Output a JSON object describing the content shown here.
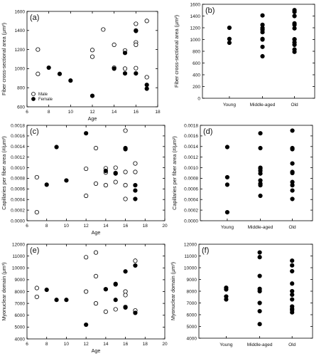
{
  "chart_data": [
    {
      "panel": "(a)",
      "type": "scatter",
      "xlabel": "Age",
      "ylabel": "Fiber cross-sectional area (μm²)",
      "xlim": [
        6,
        18
      ],
      "xticks": [
        6,
        8,
        10,
        12,
        14,
        16,
        18
      ],
      "ylim": [
        600,
        1600
      ],
      "yticks": [
        600,
        800,
        1000,
        1200,
        1400,
        1600
      ],
      "legend": {
        "placement": "bottom-left",
        "entries": [
          "Male",
          "Female"
        ]
      },
      "series": [
        {
          "name": "Male",
          "marker": "open",
          "points": [
            [
              7,
              1200
            ],
            [
              7,
              945
            ],
            [
              12,
              1195
            ],
            [
              12,
              1125
            ],
            [
              13,
              1410
            ],
            [
              14,
              1250
            ],
            [
              14,
              1010
            ],
            [
              15,
              1000
            ],
            [
              15,
              1190
            ],
            [
              16,
              1470
            ],
            [
              16,
              1400
            ],
            [
              16,
              1275
            ],
            [
              16,
              1250
            ],
            [
              16,
              1005
            ],
            [
              17,
              1500
            ],
            [
              17,
              910
            ]
          ]
        },
        {
          "name": "Female",
          "marker": "filled",
          "points": [
            [
              8,
              1010
            ],
            [
              9,
              945
            ],
            [
              10,
              875
            ],
            [
              12,
              715
            ],
            [
              14,
              1000
            ],
            [
              15,
              950
            ],
            [
              15,
              1165
            ],
            [
              16,
              950
            ],
            [
              16,
              1395
            ],
            [
              17,
              830
            ],
            [
              17,
              790
            ]
          ]
        }
      ]
    },
    {
      "panel": "(b)",
      "type": "scatter",
      "xlabel": "",
      "ylabel": "Fiber cross-sectional area (μm²)",
      "categories": [
        "Young",
        "Middle-aged",
        "Old"
      ],
      "ylim": [
        0,
        1600
      ],
      "yticks": [
        0,
        200,
        400,
        600,
        800,
        1000,
        1200,
        1400,
        1600
      ],
      "series": [
        {
          "name": "",
          "marker": "filled",
          "points": [
            [
              "Young",
              1200
            ],
            [
              "Young",
              1010
            ],
            [
              "Young",
              945
            ],
            [
              "Middle-aged",
              1410
            ],
            [
              "Middle-aged",
              1250
            ],
            [
              "Middle-aged",
              1195
            ],
            [
              "Middle-aged",
              1165
            ],
            [
              "Middle-aged",
              1125
            ],
            [
              "Middle-aged",
              1010
            ],
            [
              "Middle-aged",
              1000
            ],
            [
              "Middle-aged",
              875
            ],
            [
              "Middle-aged",
              715
            ],
            [
              "Old",
              1500
            ],
            [
              "Old",
              1470
            ],
            [
              "Old",
              1400
            ],
            [
              "Old",
              1275
            ],
            [
              "Old",
              1250
            ],
            [
              "Old",
              1190
            ],
            [
              "Old",
              1005
            ],
            [
              "Old",
              1000
            ],
            [
              "Old",
              950
            ],
            [
              "Old",
              910
            ],
            [
              "Old",
              830
            ],
            [
              "Old",
              790
            ]
          ]
        }
      ]
    },
    {
      "panel": "(c)",
      "type": "scatter",
      "xlabel": "Age",
      "ylabel": "Capillaries per fiber area (#/μm²)",
      "xlim": [
        6,
        20
      ],
      "xticks": [
        6,
        8,
        10,
        12,
        14,
        16,
        18,
        20
      ],
      "ylim": [
        0,
        0.0018
      ],
      "yticks": [
        "0.0000",
        "0.0002",
        "0.0004",
        "0.0006",
        "0.0008",
        "0.0010",
        "0.0012",
        "0.0014",
        "0.0016",
        "0.0018"
      ],
      "series": [
        {
          "name": "Male",
          "marker": "open",
          "points": [
            [
              7,
              0.00082
            ],
            [
              7,
              0.00016
            ],
            [
              12,
              0.00098
            ],
            [
              12,
              0.00047
            ],
            [
              13,
              0.00137
            ],
            [
              13,
              0.0007
            ],
            [
              14,
              0.00099
            ],
            [
              14,
              0.00091
            ],
            [
              14,
              0.00067
            ],
            [
              15,
              0.001
            ],
            [
              15,
              0.0009
            ],
            [
              15,
              0.00073
            ],
            [
              16,
              0.0017
            ],
            [
              16,
              0.00092
            ],
            [
              16,
              0.00067
            ],
            [
              16,
              0.00041
            ],
            [
              17,
              0.00108
            ],
            [
              17,
              0.00092
            ]
          ]
        },
        {
          "name": "Female",
          "marker": "filled",
          "points": [
            [
              8,
              0.00068
            ],
            [
              9,
              0.00139
            ],
            [
              10,
              0.00076
            ],
            [
              12,
              0.00165
            ],
            [
              14,
              0.00094
            ],
            [
              15,
              0.00089
            ],
            [
              16,
              0.00137
            ],
            [
              16,
              0.00135
            ],
            [
              17,
              0.00067
            ],
            [
              17,
              0.00057
            ],
            [
              17,
              0.00041
            ]
          ]
        }
      ]
    },
    {
      "panel": "(d)",
      "type": "scatter",
      "xlabel": "",
      "ylabel": "Capillaries per fiber area (#/μm²)",
      "categories": [
        "Young",
        "Middle-aged",
        "Old"
      ],
      "ylim": [
        0,
        0.0018
      ],
      "yticks": [
        "0.0000",
        "0.0002",
        "0.0004",
        "0.0006",
        "0.0008",
        "0.0010",
        "0.0012",
        "0.0014",
        "0.0016",
        "0.0018"
      ],
      "series": [
        {
          "name": "",
          "marker": "filled",
          "points": [
            [
              "Young",
              0.00139
            ],
            [
              "Young",
              0.00082
            ],
            [
              "Young",
              0.00068
            ],
            [
              "Young",
              0.00016
            ],
            [
              "Middle-aged",
              0.00165
            ],
            [
              "Middle-aged",
              0.00137
            ],
            [
              "Middle-aged",
              0.001
            ],
            [
              "Middle-aged",
              0.00098
            ],
            [
              "Middle-aged",
              0.00094
            ],
            [
              "Middle-aged",
              0.00089
            ],
            [
              "Middle-aged",
              0.00076
            ],
            [
              "Middle-aged",
              0.0007
            ],
            [
              "Middle-aged",
              0.00067
            ],
            [
              "Middle-aged",
              0.00047
            ],
            [
              "Old",
              0.0017
            ],
            [
              "Old",
              0.00137
            ],
            [
              "Old",
              0.00135
            ],
            [
              "Old",
              0.00108
            ],
            [
              "Old",
              0.00092
            ],
            [
              "Old",
              0.0009
            ],
            [
              "Old",
              0.00073
            ],
            [
              "Old",
              0.00067
            ],
            [
              "Old",
              0.00057
            ],
            [
              "Old",
              0.00041
            ]
          ]
        }
      ]
    },
    {
      "panel": "(e)",
      "type": "scatter",
      "xlabel": "Age",
      "ylabel": "Myonuclear domain (μm³)",
      "xlim": [
        6,
        20
      ],
      "xticks": [
        6,
        8,
        10,
        12,
        14,
        16,
        18,
        20
      ],
      "ylim": [
        4000,
        12000
      ],
      "yticks": [
        4000,
        5000,
        6000,
        7000,
        8000,
        9000,
        10000,
        11000,
        12000
      ],
      "series": [
        {
          "name": "Male",
          "marker": "open",
          "points": [
            [
              7,
              8300
            ],
            [
              7,
              7550
            ],
            [
              12,
              10900
            ],
            [
              12,
              8000
            ],
            [
              13,
              11300
            ],
            [
              13,
              9300
            ],
            [
              13,
              7000
            ],
            [
              14,
              8200
            ],
            [
              14,
              6300
            ],
            [
              15,
              8600
            ],
            [
              15,
              6500
            ],
            [
              16,
              8000
            ],
            [
              16,
              7700
            ],
            [
              16,
              6700
            ],
            [
              17,
              10600
            ],
            [
              17,
              6400
            ]
          ]
        },
        {
          "name": "Female",
          "marker": "filled",
          "points": [
            [
              8,
              8150
            ],
            [
              9,
              7300
            ],
            [
              10,
              7300
            ],
            [
              12,
              5200
            ],
            [
              14,
              8200
            ],
            [
              15,
              7300
            ],
            [
              15,
              8650
            ],
            [
              16,
              9700
            ],
            [
              16,
              6650
            ],
            [
              17,
              10200
            ],
            [
              17,
              6200
            ]
          ]
        }
      ]
    },
    {
      "panel": "(f)",
      "type": "scatter",
      "xlabel": "",
      "ylabel": "Myonuclear domain (μm³)",
      "categories": [
        "Young",
        "Middle-aged",
        "Old"
      ],
      "ylim": [
        4000,
        12000
      ],
      "yticks": [
        4000,
        5000,
        6000,
        7000,
        8000,
        9000,
        10000,
        11000,
        12000
      ],
      "series": [
        {
          "name": "",
          "marker": "filled",
          "points": [
            [
              "Young",
              8300
            ],
            [
              "Young",
              8150
            ],
            [
              "Young",
              7550
            ],
            [
              "Young",
              7300
            ],
            [
              "Middle-aged",
              11300
            ],
            [
              "Middle-aged",
              10900
            ],
            [
              "Middle-aged",
              9300
            ],
            [
              "Middle-aged",
              8200
            ],
            [
              "Middle-aged",
              8000
            ],
            [
              "Middle-aged",
              7000
            ],
            [
              "Middle-aged",
              6300
            ],
            [
              "Middle-aged",
              5200
            ],
            [
              "Old",
              10600
            ],
            [
              "Old",
              10200
            ],
            [
              "Old",
              9700
            ],
            [
              "Old",
              8650
            ],
            [
              "Old",
              8000
            ],
            [
              "Old",
              7700
            ],
            [
              "Old",
              7300
            ],
            [
              "Old",
              6700
            ],
            [
              "Old",
              6500
            ],
            [
              "Old",
              6400
            ],
            [
              "Old",
              6200
            ]
          ]
        }
      ]
    }
  ]
}
